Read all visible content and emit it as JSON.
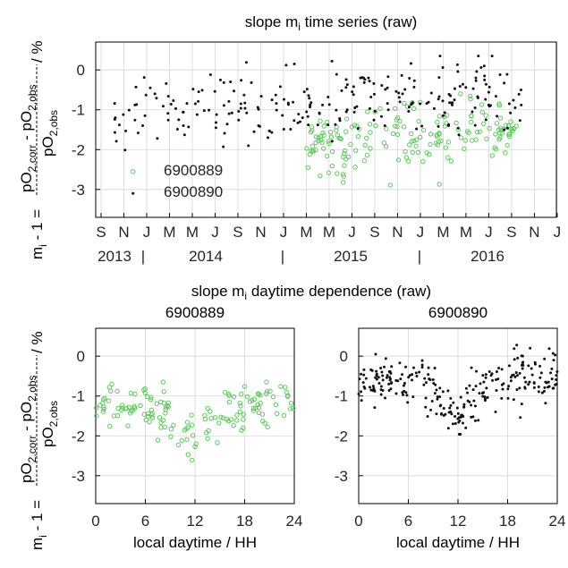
{
  "colors": {
    "green": "#5bc95b",
    "black": "#111111"
  },
  "ylabel": {
    "lhs_main": "m",
    "lhs_sub": "i",
    "lhs_rest": " - 1 = ",
    "num": "pO",
    "num_sub": "2,corr",
    "num_mid": " - pO",
    "num_sub2": "2,obs",
    "den": "pO",
    "den_sub": "2,obs",
    "unit": " / %"
  },
  "chart_data": [
    {
      "type": "scatter",
      "title": "slope m",
      "title_sub": "i",
      "title_rest": " time series (raw)",
      "ylim": [
        -3.7,
        0.7
      ],
      "yticks": [
        0,
        -1,
        -2,
        -3
      ],
      "month_ticks": [
        "S",
        "N",
        "J",
        "M",
        "M",
        "J",
        "S",
        "N",
        "J",
        "M",
        "M",
        "J",
        "S",
        "N",
        "J",
        "M",
        "M",
        "J",
        "S",
        "N",
        "J"
      ],
      "year_labels": [
        "2013",
        "2014",
        "2015",
        "2016"
      ],
      "legend": [
        "6900889",
        "6900890"
      ],
      "grid": true,
      "series": [
        {
          "name": "6900889",
          "color": "green",
          "marker": "circle",
          "points": []
        },
        {
          "name": "6900890",
          "color": "black",
          "marker": "dot",
          "points": []
        }
      ]
    },
    {
      "type": "scatter",
      "title": "slope m",
      "title_sub": "i",
      "title_rest": " daytime dependence (raw)",
      "subtitle": "6900889",
      "xlabel": "local daytime / HH",
      "xlim": [
        0,
        24
      ],
      "xticks": [
        0,
        6,
        12,
        18,
        24
      ],
      "ylim": [
        -3.7,
        0.7
      ],
      "yticks": [
        0,
        -1,
        -2,
        -3
      ],
      "grid": true,
      "series": [
        {
          "name": "6900889",
          "color": "green",
          "marker": "circle",
          "points": []
        }
      ]
    },
    {
      "type": "scatter",
      "subtitle": "6900890",
      "xlabel": "local daytime / HH",
      "xlim": [
        0,
        24
      ],
      "xticks": [
        0,
        6,
        12,
        18,
        24
      ],
      "ylim": [
        -3.7,
        0.7
      ],
      "yticks": [
        0,
        -1,
        -2,
        -3
      ],
      "grid": true,
      "series": [
        {
          "name": "6900890",
          "color": "black",
          "marker": "dot",
          "points": []
        }
      ]
    }
  ]
}
